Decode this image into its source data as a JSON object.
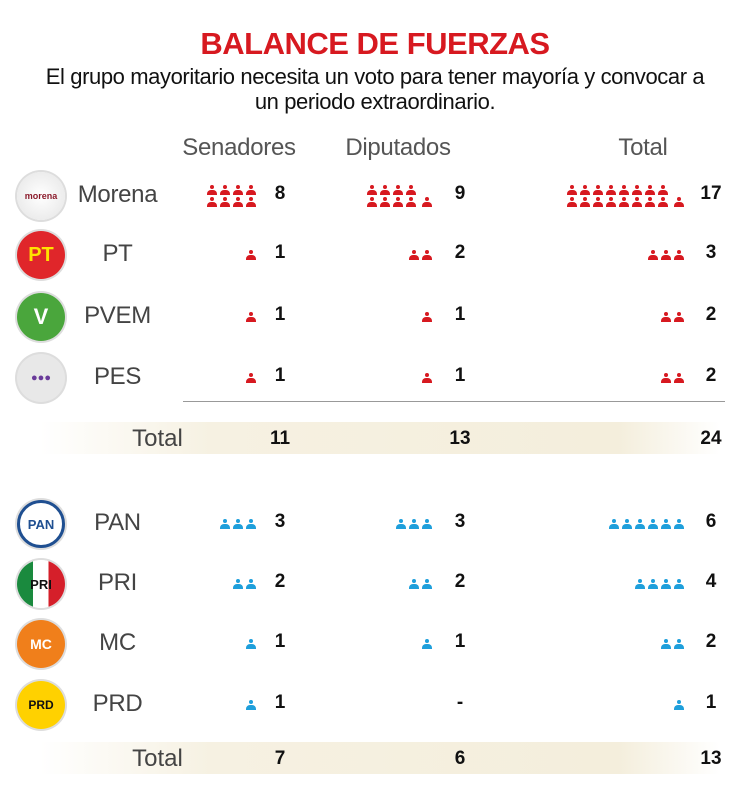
{
  "title": "BALANCE DE FUERZAS",
  "subtitle": "El grupo mayoritario necesita un voto para tener mayoría y convocar a un periodo extraordinario.",
  "colors": {
    "title": "#d71920",
    "coalition_a": "#d71920",
    "coalition_b": "#1e9fdb"
  },
  "chart_data": {
    "type": "table",
    "columns": [
      "Senadores",
      "Diputados",
      "Total"
    ],
    "groups": [
      {
        "color": "#d71920",
        "rows": [
          {
            "party": "Morena",
            "logo": "morena-logo",
            "senadores": 8,
            "diputados": 9,
            "total": 17
          },
          {
            "party": "PT",
            "logo": "pt-logo",
            "senadores": 1,
            "diputados": 2,
            "total": 3
          },
          {
            "party": "PVEM",
            "logo": "pvem-logo",
            "senadores": 1,
            "diputados": 1,
            "total": 2
          },
          {
            "party": "PES",
            "logo": "pes-logo",
            "senadores": 1,
            "diputados": 1,
            "total": 2
          }
        ],
        "totals": {
          "label": "Total",
          "senadores": "11",
          "diputados": "13",
          "total": "24"
        }
      },
      {
        "color": "#1e9fdb",
        "rows": [
          {
            "party": "PAN",
            "logo": "pan-logo",
            "senadores": 3,
            "diputados": 3,
            "total": 6
          },
          {
            "party": "PRI",
            "logo": "pri-logo",
            "senadores": 2,
            "diputados": 2,
            "total": 4
          },
          {
            "party": "MC",
            "logo": "mc-logo",
            "senadores": 1,
            "diputados": 1,
            "total": 2
          },
          {
            "party": "PRD",
            "logo": "prd-logo",
            "senadores": 1,
            "diputados": "-",
            "total": 1
          }
        ],
        "totals": {
          "label": "Total",
          "senadores": "7",
          "diputados": "6",
          "total": "13"
        }
      }
    ]
  }
}
